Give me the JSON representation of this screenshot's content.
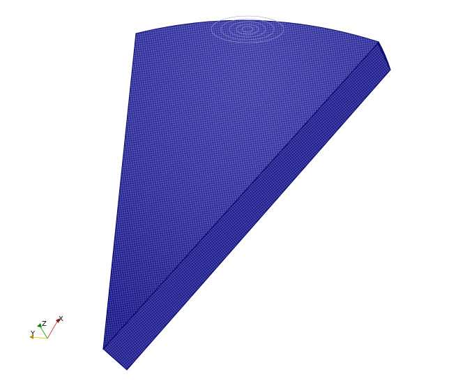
{
  "viewport": {
    "background": "#ffffff",
    "mesh": {
      "face_color": "#1c1c9a",
      "edge_color": "#000066",
      "wire_color": "#c8c8e6"
    }
  },
  "orientation_axes": {
    "x": {
      "label": "X",
      "color": "#d84040"
    },
    "y": {
      "label": "Y",
      "color": "#e8d020"
    },
    "z": {
      "label": "Z",
      "color": "#20b020"
    }
  }
}
